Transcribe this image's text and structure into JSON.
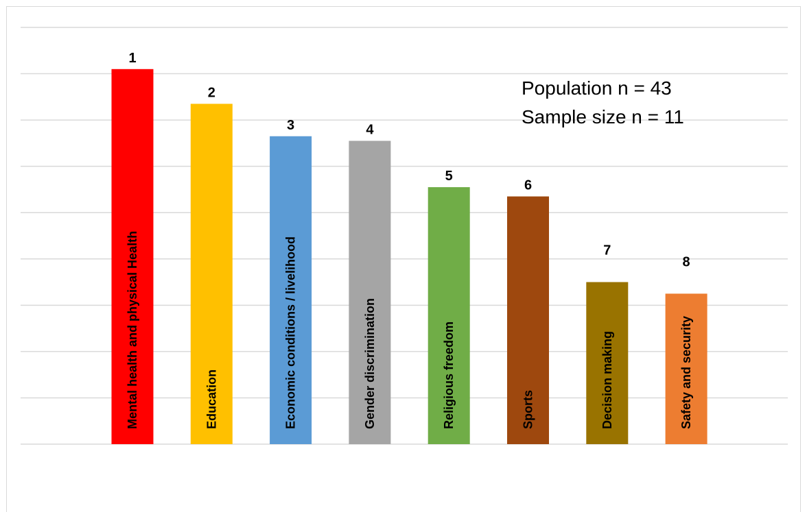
{
  "chart_data": {
    "type": "bar",
    "categories": [
      "Mental health and physical Health",
      "Education",
      "Economic conditions / livelihood",
      "Gender discrimination",
      "Religious freedom",
      "Sports",
      "Decision making",
      "Safety and security"
    ],
    "values": [
      8.1,
      7.35,
      6.65,
      6.55,
      5.55,
      5.35,
      3.5,
      3.25
    ],
    "rank_labels": [
      "1",
      "2",
      "3",
      "4",
      "5",
      "6",
      "7",
      "8"
    ],
    "colors": [
      "#ff0000",
      "#ffc000",
      "#5b9bd5",
      "#a5a5a5",
      "#70ad47",
      "#9e480e",
      "#997300",
      "#ed7d31"
    ],
    "ylim": [
      0,
      9
    ],
    "grid": true,
    "annotations": [
      "Population n = 43",
      "Sample size n = 11"
    ]
  }
}
